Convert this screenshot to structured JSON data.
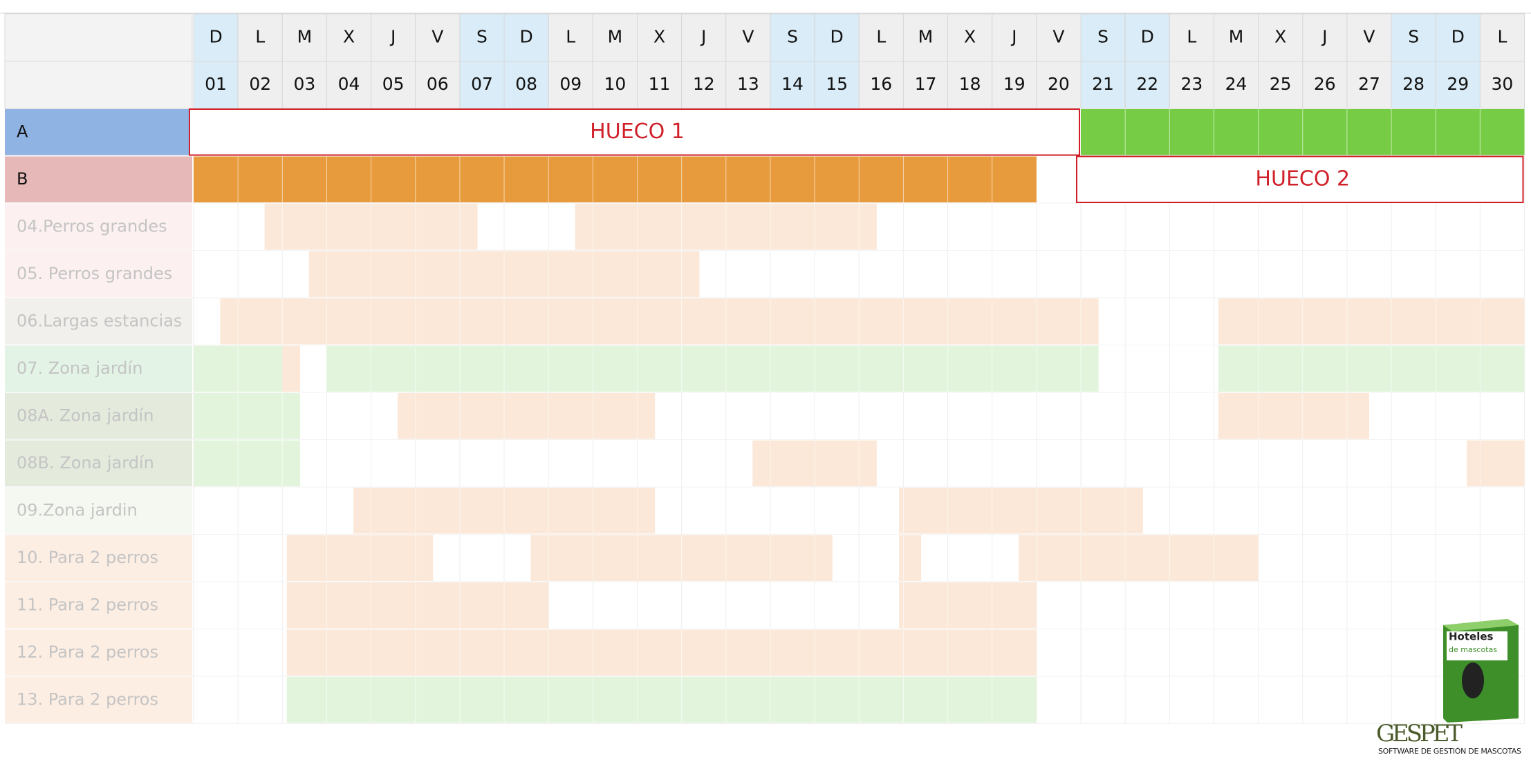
{
  "header": {
    "weekdays": [
      "D",
      "L",
      "M",
      "X",
      "J",
      "V",
      "S",
      "D",
      "L",
      "M",
      "X",
      "J",
      "V",
      "S",
      "D",
      "L",
      "M",
      "X",
      "J",
      "V",
      "S",
      "D",
      "L",
      "M",
      "X",
      "J",
      "V",
      "S",
      "D",
      "L"
    ],
    "days": [
      "01",
      "02",
      "03",
      "04",
      "05",
      "06",
      "07",
      "08",
      "09",
      "10",
      "11",
      "12",
      "13",
      "14",
      "15",
      "16",
      "17",
      "18",
      "19",
      "20",
      "21",
      "22",
      "23",
      "24",
      "25",
      "26",
      "27",
      "28",
      "29",
      "30"
    ],
    "highlight_columns": [
      0,
      6,
      7,
      13,
      14,
      20,
      21,
      27,
      28
    ],
    "highlight_color": "#d9ecf7",
    "cell_color": "#efefef"
  },
  "rows": [
    {
      "label": "A",
      "color": "#8fb3e3",
      "text_color": "#111111",
      "bookings": [
        {
          "from": 20,
          "to": 30,
          "color": "#76cd45"
        }
      ],
      "gap": {
        "label": "HUECO 1",
        "from": 0,
        "to": 20
      }
    },
    {
      "label": "B",
      "color": "#e6b8b8",
      "text_color": "#111111",
      "bookings": [
        {
          "from": 0,
          "to": 19,
          "color": "#e89b3c"
        }
      ],
      "gap": {
        "label": "HUECO 2",
        "from": 20,
        "to": 30
      }
    },
    {
      "label": "04.Perros grandes",
      "color": "#fdf0f0",
      "text_color": "#c4c4c4",
      "bookings": [
        {
          "from": 1.6,
          "to": 6.4,
          "color": "#fbe8d8"
        },
        {
          "from": 8.6,
          "to": 15.4,
          "color": "#fbe8d8"
        }
      ]
    },
    {
      "label": "05. Perros grandes",
      "color": "#fdf0f0",
      "text_color": "#c4c4c4",
      "bookings": [
        {
          "from": 2.6,
          "to": 11.4,
          "color": "#fbe8d8"
        }
      ]
    },
    {
      "label": "06.Largas estancias",
      "color": "#f2f0ec",
      "text_color": "#c4c4c4",
      "bookings": [
        {
          "from": 0.6,
          "to": 20.4,
          "color": "#fbe8d8"
        },
        {
          "from": 23.1,
          "to": 30,
          "color": "#fbe8d8"
        }
      ]
    },
    {
      "label": "07. Zona jardín",
      "color": "#e3f3e6",
      "text_color": "#c4c4c4",
      "bookings": [
        {
          "from": 0,
          "to": 2,
          "color": "#e2f5dc"
        },
        {
          "from": 2,
          "to": 2.4,
          "color": "#fbe8d8"
        },
        {
          "from": 3,
          "to": 20.4,
          "color": "#e2f5dc"
        },
        {
          "from": 23.1,
          "to": 30,
          "color": "#e2f5dc"
        }
      ]
    },
    {
      "label": "08A. Zona jardín",
      "color": "#e4ebdd",
      "text_color": "#c4c4c4",
      "bookings": [
        {
          "from": 0,
          "to": 2.4,
          "color": "#e2f5dc"
        },
        {
          "from": 4.6,
          "to": 10.4,
          "color": "#fbe8d8"
        },
        {
          "from": 23.1,
          "to": 26.5,
          "color": "#fbe8d8"
        }
      ]
    },
    {
      "label": "08B. Zona jardín",
      "color": "#e4ebdd",
      "text_color": "#c4c4c4",
      "bookings": [
        {
          "from": 0,
          "to": 2.4,
          "color": "#e2f5dc"
        },
        {
          "from": 12.6,
          "to": 15.4,
          "color": "#fbe8d8"
        },
        {
          "from": 28.7,
          "to": 30,
          "color": "#fbe8d8"
        }
      ]
    },
    {
      "label": "09.Zona jardin",
      "color": "#f5f8f0",
      "text_color": "#c4c4c4",
      "bookings": [
        {
          "from": 3.6,
          "to": 10.4,
          "color": "#fbe8d8"
        },
        {
          "from": 15.9,
          "to": 21.4,
          "color": "#fbe8d8"
        }
      ]
    },
    {
      "label": "10. Para 2 perros",
      "color": "#fdeee4",
      "text_color": "#c4c4c4",
      "bookings": [
        {
          "from": 2.1,
          "to": 5.4,
          "color": "#fbe8d8"
        },
        {
          "from": 7.6,
          "to": 14.4,
          "color": "#fbe8d8"
        },
        {
          "from": 15.9,
          "to": 16.4,
          "color": "#fbe8d8"
        },
        {
          "from": 18.6,
          "to": 24,
          "color": "#fbe8d8"
        }
      ]
    },
    {
      "label": "11. Para 2 perros",
      "color": "#fdeee4",
      "text_color": "#c4c4c4",
      "bookings": [
        {
          "from": 2.1,
          "to": 8,
          "color": "#fbe8d8"
        },
        {
          "from": 15.9,
          "to": 19,
          "color": "#fbe8d8"
        }
      ]
    },
    {
      "label": "12. Para 2 perros",
      "color": "#fdeee4",
      "text_color": "#c4c4c4",
      "bookings": [
        {
          "from": 2.1,
          "to": 19,
          "color": "#fbe8d8"
        }
      ]
    },
    {
      "label": "13. Para 2 perros",
      "color": "#fdeee4",
      "text_color": "#c4c4c4",
      "bookings": [
        {
          "from": 2.1,
          "to": 19,
          "color": "#e2f5dc"
        }
      ]
    }
  ],
  "logo": {
    "box_title": "Hoteles",
    "box_subtitle": "de mascotas",
    "brand": "GESPET",
    "tagline": "SOFTWARE DE GESTIÓN DE MASCOTAS"
  }
}
